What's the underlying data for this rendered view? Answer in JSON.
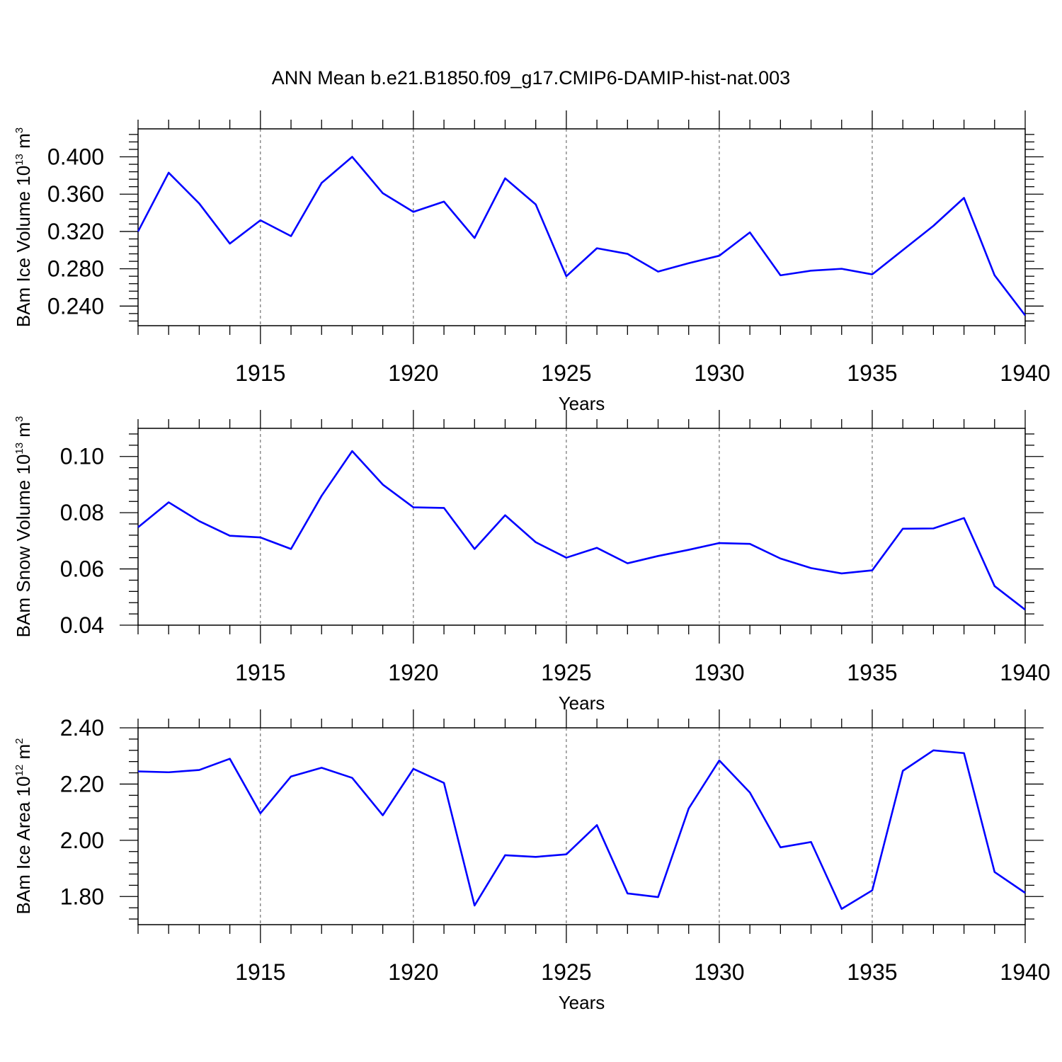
{
  "figure_title": "ANN Mean b.e21.B1850.f09_g17.CMIP6-DAMIP-hist-nat.003",
  "chart_data": [
    {
      "type": "line",
      "title": "",
      "xlabel": "Years",
      "ylabel": {
        "text": "BAm Ice Volume 10",
        "exp": "13",
        "unit": " m",
        "unit_exp": "3"
      },
      "xlim": [
        1911,
        1940
      ],
      "ylim": [
        0.219,
        0.43
      ],
      "xticks": [
        1915,
        1920,
        1925,
        1930,
        1935,
        1940
      ],
      "xtick_labels": [
        "1915",
        "1920",
        "1925",
        "1930",
        "1935",
        "1940"
      ],
      "yticks": [
        0.24,
        0.28,
        0.32,
        0.36,
        0.4
      ],
      "ytick_labels": [
        "0.240",
        "0.280",
        "0.320",
        "0.360",
        "0.400"
      ],
      "grid": "vertical dashed at major x ticks",
      "color": "#0000ff",
      "x": [
        1911,
        1912,
        1913,
        1914,
        1915,
        1916,
        1917,
        1918,
        1919,
        1920,
        1921,
        1922,
        1923,
        1924,
        1925,
        1926,
        1927,
        1928,
        1929,
        1930,
        1931,
        1932,
        1933,
        1934,
        1935,
        1936,
        1937,
        1938,
        1939,
        1940
      ],
      "values": [
        0.32,
        0.383,
        0.35,
        0.307,
        0.332,
        0.315,
        0.372,
        0.4,
        0.361,
        0.341,
        0.352,
        0.313,
        0.377,
        0.349,
        0.272,
        0.302,
        0.296,
        0.277,
        0.286,
        0.294,
        0.319,
        0.273,
        0.278,
        0.28,
        0.274,
        0.3,
        0.326,
        0.356,
        0.273,
        0.23
      ]
    },
    {
      "type": "line",
      "title": "",
      "xlabel": "Years",
      "ylabel": {
        "text": "BAm Snow Volume 10",
        "exp": "13",
        "unit": " m",
        "unit_exp": "3"
      },
      "xlim": [
        1911,
        1940
      ],
      "ylim": [
        0.04,
        0.11
      ],
      "xticks": [
        1915,
        1920,
        1925,
        1930,
        1935,
        1940
      ],
      "xtick_labels": [
        "1915",
        "1920",
        "1925",
        "1930",
        "1935",
        "1940"
      ],
      "yticks": [
        0.04,
        0.06,
        0.08,
        0.1
      ],
      "ytick_labels": [
        "0.04",
        "0.06",
        "0.08",
        "0.10"
      ],
      "grid": "vertical dashed at major x ticks",
      "color": "#0000ff",
      "x": [
        1911,
        1912,
        1913,
        1914,
        1915,
        1916,
        1917,
        1918,
        1919,
        1920,
        1921,
        1922,
        1923,
        1924,
        1925,
        1926,
        1927,
        1928,
        1929,
        1930,
        1931,
        1932,
        1933,
        1934,
        1935,
        1936,
        1937,
        1938,
        1939,
        1940
      ],
      "values": [
        0.0748,
        0.0837,
        0.077,
        0.0718,
        0.0712,
        0.0671,
        0.086,
        0.1019,
        0.09,
        0.0819,
        0.0817,
        0.0671,
        0.0791,
        0.0695,
        0.064,
        0.0675,
        0.062,
        0.0646,
        0.0668,
        0.0692,
        0.0689,
        0.0637,
        0.0603,
        0.0584,
        0.0595,
        0.0743,
        0.0744,
        0.0781,
        0.0539,
        0.0455
      ]
    },
    {
      "type": "line",
      "title": "",
      "xlabel": "Years",
      "ylabel": {
        "text": "BAm Ice Area 10",
        "exp": "12",
        "unit": " m",
        "unit_exp": "2"
      },
      "xlim": [
        1911,
        1940
      ],
      "ylim": [
        1.7,
        2.4
      ],
      "xticks": [
        1915,
        1920,
        1925,
        1930,
        1935,
        1940
      ],
      "xtick_labels": [
        "1915",
        "1920",
        "1925",
        "1930",
        "1935",
        "1940"
      ],
      "yticks": [
        1.8,
        2.0,
        2.2,
        2.4
      ],
      "ytick_labels": [
        "1.80",
        "2.00",
        "2.20",
        "2.40"
      ],
      "grid": "vertical dashed at major x ticks",
      "color": "#0000ff",
      "x": [
        1911,
        1912,
        1913,
        1914,
        1915,
        1916,
        1917,
        1918,
        1919,
        1920,
        1921,
        1922,
        1923,
        1924,
        1925,
        1926,
        1927,
        1928,
        1929,
        1930,
        1931,
        1932,
        1933,
        1934,
        1935,
        1936,
        1937,
        1938,
        1939,
        1940
      ],
      "values": [
        2.245,
        2.242,
        2.25,
        2.29,
        2.096,
        2.227,
        2.258,
        2.222,
        2.089,
        2.254,
        2.204,
        1.768,
        1.947,
        1.941,
        1.95,
        2.054,
        1.811,
        1.798,
        2.113,
        2.284,
        2.17,
        1.975,
        1.994,
        1.756,
        1.822,
        2.247,
        2.32,
        2.31,
        1.887,
        1.813
      ]
    }
  ]
}
